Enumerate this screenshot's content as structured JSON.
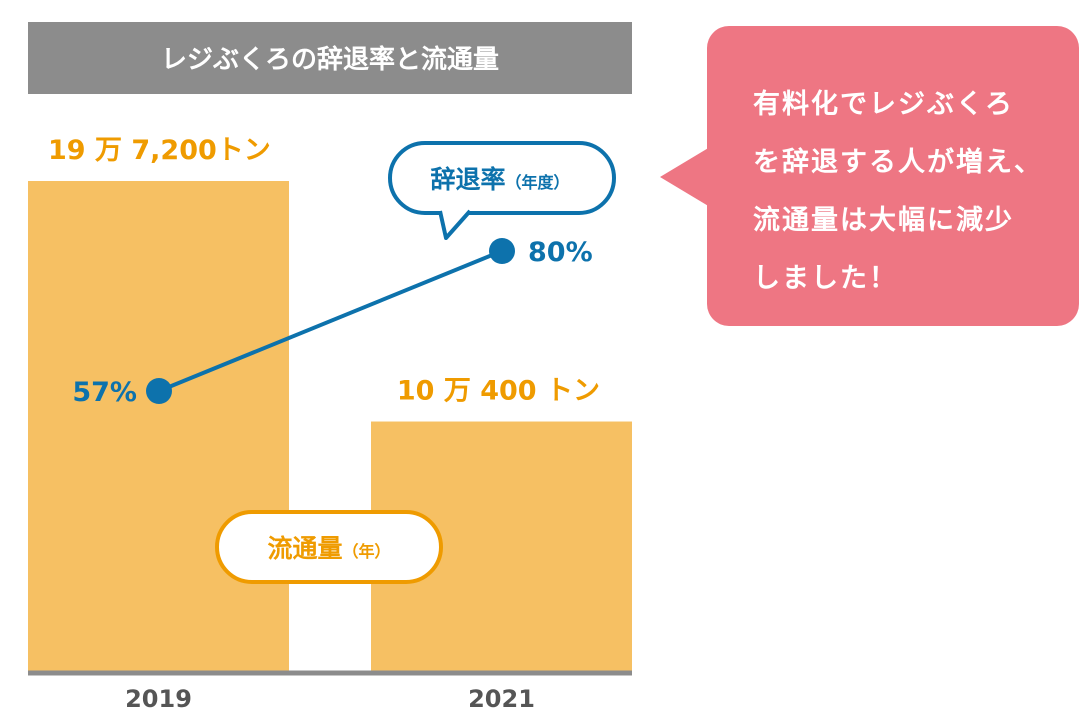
{
  "chart_data": {
    "type": "bar",
    "title": "レジぶくろの辞退率と流通量",
    "categories": [
      "2019",
      "2021"
    ],
    "series": [
      {
        "name": "流通量",
        "unit_label": "（年）",
        "values": [
          197200,
          100400
        ],
        "data_labels": [
          "19 万 7,200トン",
          "10 万 400 トン"
        ],
        "color": "#f6c063"
      },
      {
        "name": "辞退率",
        "unit_label": "（年度）",
        "type": "line",
        "values": [
          57,
          80
        ],
        "data_labels": [
          "57%",
          "80%"
        ],
        "color": "#0d72ac"
      }
    ],
    "title_bar_color": "#8c8c8c",
    "axis_color": "#8c8c8c",
    "label_color_bars": "#ef9b00",
    "label_color_line": "#0d72ac",
    "year_label_color": "#555555",
    "bubble_line_border": "#0d72ac",
    "bubble_bar_border": "#ef9b00"
  },
  "callout": {
    "lines": [
      "有料化でレジぶくろ",
      "を辞退する人が増え、",
      "流通量は大幅に減少",
      "しました！"
    ],
    "bg_color": "#ee7683"
  }
}
